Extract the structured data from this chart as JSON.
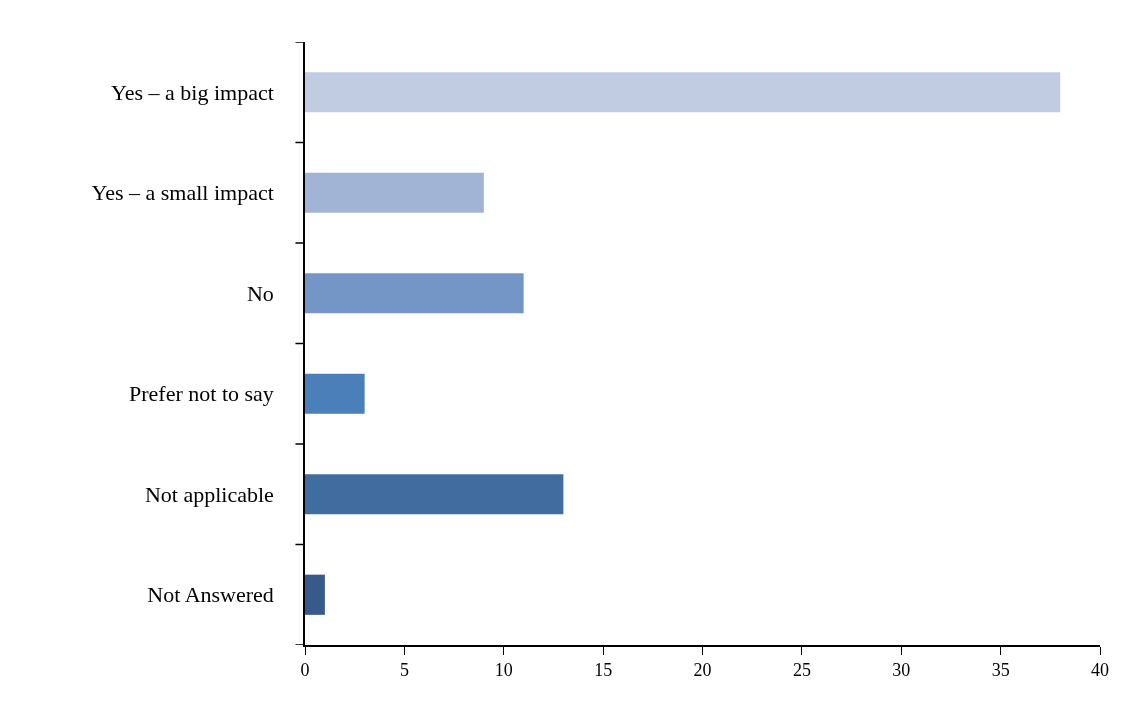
{
  "chart_data": {
    "type": "bar",
    "orientation": "horizontal",
    "categories": [
      "Yes – a big impact",
      "Yes – a small impact",
      "No",
      "Prefer not to say",
      "Not applicable",
      "Not Answered"
    ],
    "values": [
      38,
      9,
      11,
      3,
      13,
      1
    ],
    "colors": [
      "#c1cce2",
      "#a2b4d6",
      "#7396c6",
      "#4a7fba",
      "#416ca0",
      "#375a8a"
    ],
    "xlim": [
      0,
      40
    ],
    "xticks": [
      0,
      5,
      10,
      15,
      20,
      25,
      30,
      35,
      40
    ]
  }
}
